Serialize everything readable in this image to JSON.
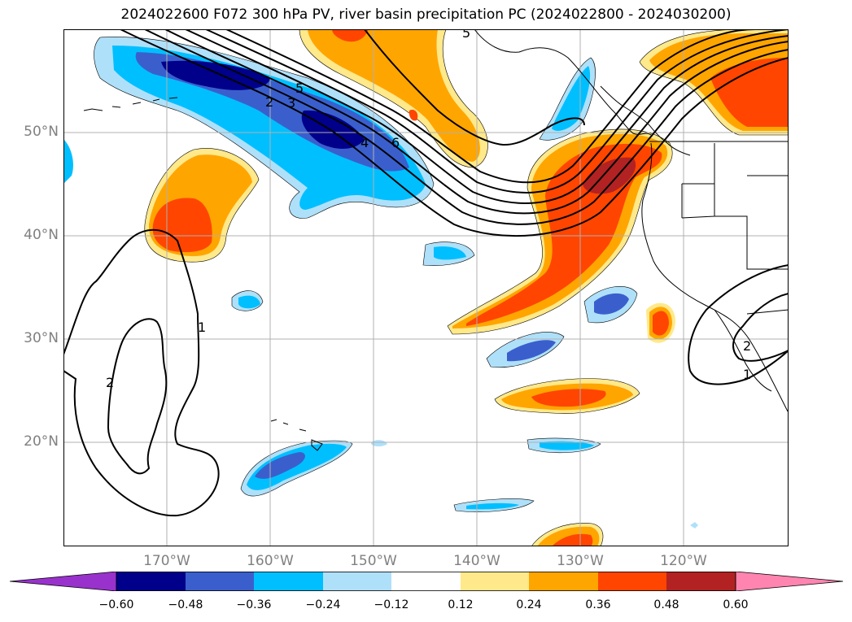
{
  "title": "2024022600 F072 300 hPa PV, river basin precipitation PC (2024022800 - 2024030200)",
  "lat_labels": [
    "50°N",
    "40°N",
    "30°N",
    "20°N"
  ],
  "lon_labels": [
    "170°W",
    "160°W",
    "150°W",
    "140°W",
    "130°W",
    "120°W"
  ],
  "contour_labels": [
    "2",
    "3",
    "5",
    "4",
    "6",
    "5",
    "1",
    "2",
    "1",
    "2"
  ],
  "colorbar": {
    "ticks": [
      "−0.60",
      "−0.48",
      "−0.36",
      "−0.24",
      "−0.12",
      "0.12",
      "0.24",
      "0.36",
      "0.48",
      "0.60"
    ],
    "colors": [
      "#9932cc",
      "#00008b",
      "#3a5fcd",
      "#00bfff",
      "#afe0fa",
      "#ffffff",
      "#ffe98a",
      "#ffa500",
      "#ff4500",
      "#b22222",
      "#ff85b0"
    ]
  },
  "fill_colors": {
    "neg_1": "#afe0fa",
    "neg_2": "#00bfff",
    "neg_3": "#3a5fcd",
    "neg_4": "#00008b",
    "pos_1": "#ffe98a",
    "pos_2": "#ffa500",
    "pos_3": "#ff4500",
    "pos_4": "#b22222"
  }
}
